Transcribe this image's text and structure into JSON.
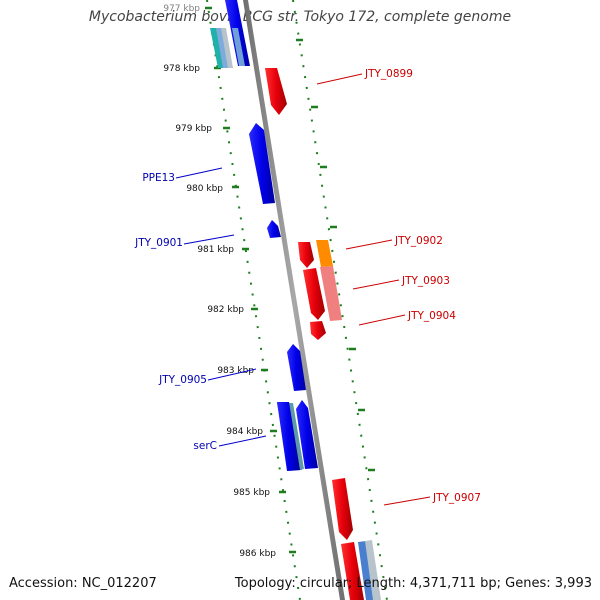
{
  "title": "Mycobacterium bovis BCG str. Tokyo 172, complete genome",
  "footer": {
    "accession": "Accession: NC_012207",
    "summary": "Topology: circular; Length: 4,371,711 bp; Genes: 3,993"
  },
  "colors": {
    "forward_strand": "#e8000b",
    "reverse_strand": "#0000e8",
    "ticks": "#1e7d1e",
    "backbone": "#888888",
    "rrna_orange": "#ff8c00",
    "light_red": "#f08080",
    "teal": "#20b2aa"
  },
  "scale_ticks": [
    {
      "label": "977 kbp"
    },
    {
      "label": "978 kbp"
    },
    {
      "label": "979 kbp"
    },
    {
      "label": "980 kbp"
    },
    {
      "label": "981 kbp"
    },
    {
      "label": "982 kbp"
    },
    {
      "label": "983 kbp"
    },
    {
      "label": "984 kbp"
    },
    {
      "label": "985 kbp"
    },
    {
      "label": "986 kbp"
    }
  ],
  "gene_labels": {
    "jty_0899": "JTY_0899",
    "ppe13": "PPE13",
    "jty_0901": "JTY_0901",
    "jty_0902": "JTY_0902",
    "jty_0903": "JTY_0903",
    "jty_0904": "JTY_0904",
    "jty_0905": "JTY_0905",
    "serc": "serC",
    "jty_0907": "JTY_0907"
  }
}
